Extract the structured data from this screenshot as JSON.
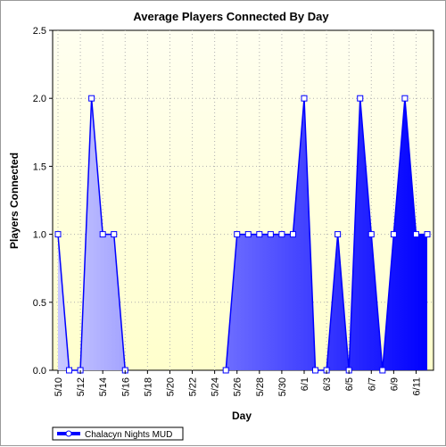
{
  "chart_data": {
    "type": "area",
    "title": "Average Players Connected By Day",
    "xlabel": "Day",
    "ylabel": "Players Connected",
    "ylim": [
      0,
      2.5
    ],
    "yticks": [
      "0.0",
      "0.5",
      "1.0",
      "1.5",
      "2.0",
      "2.5"
    ],
    "xtick_labels": [
      "5/10",
      "5/12",
      "5/14",
      "5/16",
      "5/18",
      "5/20",
      "5/22",
      "5/24",
      "5/26",
      "5/28",
      "5/30",
      "6/1",
      "6/3",
      "6/5",
      "6/7",
      "6/9",
      "6/11"
    ],
    "grid": true,
    "legend_position": "bottom-left",
    "x": [
      "5/10",
      "5/11",
      "5/12",
      "5/13",
      "5/14",
      "5/15",
      "5/16",
      "5/17",
      "5/18",
      "5/19",
      "5/20",
      "5/21",
      "5/22",
      "5/23",
      "5/24",
      "5/25",
      "5/26",
      "5/27",
      "5/28",
      "5/29",
      "5/30",
      "5/31",
      "6/1",
      "6/2",
      "6/3",
      "6/4",
      "6/5",
      "6/6",
      "6/7",
      "6/8",
      "6/9",
      "6/10",
      "6/11",
      "6/12"
    ],
    "series": [
      {
        "name": "Chalacyn Nights MUD",
        "values": [
          1,
          0,
          0,
          2,
          1,
          1,
          0,
          null,
          null,
          null,
          null,
          null,
          null,
          null,
          null,
          0,
          1,
          1,
          1,
          1,
          1,
          1,
          2,
          0,
          0,
          1,
          0,
          2,
          1,
          0,
          1,
          2,
          1,
          1
        ]
      }
    ]
  },
  "colors": {
    "plot_background_top": "#fffff0",
    "plot_background_bottom": "#ffffcc",
    "area_light": "#c8c8ff",
    "area_dark": "#0000ff",
    "line": "#0000ff",
    "marker_fill": "#ffffff"
  }
}
